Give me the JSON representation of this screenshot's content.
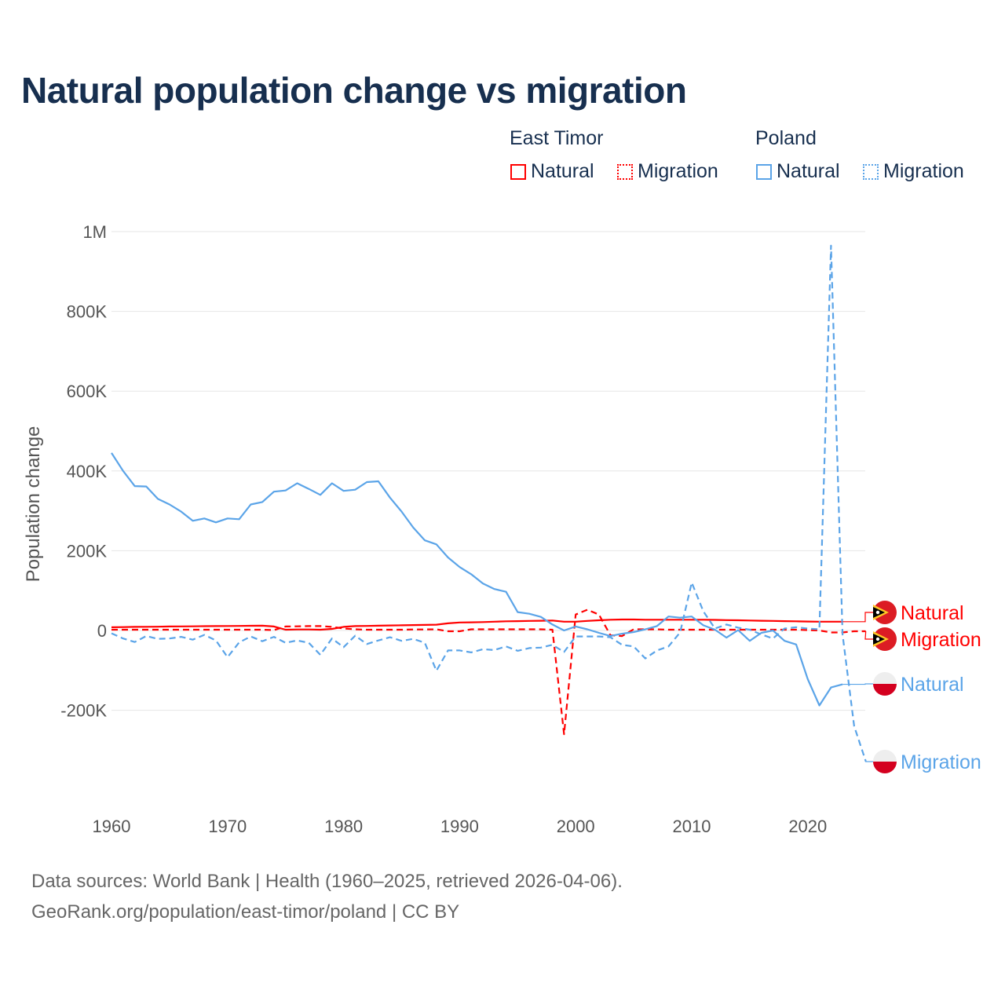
{
  "title": "Natural population change vs migration",
  "legend": {
    "groups": [
      {
        "name": "East Timor",
        "items": [
          "Natural",
          "Migration"
        ]
      },
      {
        "name": "Poland",
        "items": [
          "Natural",
          "Migration"
        ]
      }
    ]
  },
  "footer": {
    "line1": "Data sources: World Bank | Health (1960–2025, retrieved 2026-04-06).",
    "line2": "GeoRank.org/population/east-timor/poland | CC BY"
  },
  "colors": {
    "east_timor": "#ff0000",
    "poland": "#5ba4e8"
  },
  "chart_data": {
    "type": "line",
    "title": "Natural population change vs migration",
    "xlabel": "",
    "ylabel": "Population change",
    "xlim": [
      1960,
      2025
    ],
    "ylim": [
      -400000,
      1000000
    ],
    "x_ticks": [
      1960,
      1970,
      1980,
      1990,
      2000,
      2010,
      2020
    ],
    "x_tick_labels": [
      "1960",
      "1970",
      "1980",
      "1990",
      "2000",
      "2010",
      "2020"
    ],
    "y_ticks": [
      -200000,
      0,
      200000,
      400000,
      600000,
      800000,
      1000000
    ],
    "y_tick_labels": [
      "-200K",
      "0",
      "200K",
      "400K",
      "600K",
      "800K",
      "1M"
    ],
    "grid": true,
    "legend_position": "top-right",
    "start_year": 1960,
    "series": [
      {
        "name": "Natural",
        "country": "East Timor",
        "color": "#ff0000",
        "dash": false,
        "end_label": "Natural",
        "values": [
          8000,
          8500,
          9000,
          9200,
          9500,
          10000,
          10200,
          10500,
          10800,
          11000,
          11200,
          11500,
          11800,
          12000,
          10000,
          2000,
          2500,
          2500,
          2000,
          4000,
          9000,
          11000,
          11500,
          12000,
          12500,
          13000,
          13500,
          14000,
          14500,
          18000,
          20000,
          20500,
          21000,
          22000,
          23000,
          23500,
          24000,
          24500,
          25000,
          22000,
          22000,
          24000,
          25500,
          27000,
          27500,
          27500,
          27000,
          27000,
          27000,
          27000,
          27000,
          27000,
          26500,
          26000,
          25500,
          25000,
          24500,
          24000,
          23500,
          23000,
          22500,
          22000,
          22000,
          22000,
          null,
          null
        ]
      },
      {
        "name": "Migration",
        "country": "East Timor",
        "color": "#ff0000",
        "dash": true,
        "end_label": "Migration",
        "values": [
          2000,
          2000,
          2000,
          2000,
          2000,
          2000,
          2000,
          2000,
          2000,
          2000,
          2000,
          2000,
          2000,
          2000,
          1000,
          10000,
          10500,
          11000,
          11000,
          9000,
          5000,
          3000,
          2000,
          2000,
          2000,
          2000,
          2500,
          2500,
          3000,
          -2000,
          -2000,
          3000,
          3000,
          3000,
          3000,
          3000,
          3000,
          3000,
          2000,
          -260000,
          40000,
          52000,
          40000,
          -12000,
          -14000,
          3000,
          3000,
          3000,
          2000,
          2000,
          2000,
          2000,
          2000,
          2000,
          2000,
          2000,
          2000,
          2000,
          2000,
          2000,
          1000,
          0,
          -5000,
          -5000,
          -2000,
          -2000
        ]
      },
      {
        "name": "Natural",
        "country": "Poland",
        "color": "#5ba4e8",
        "dash": false,
        "end_label": "Natural",
        "values": [
          445000,
          400000,
          362000,
          361000,
          330000,
          316000,
          298000,
          275000,
          281000,
          271000,
          281000,
          279000,
          316000,
          322000,
          348000,
          351000,
          369000,
          355000,
          340000,
          369000,
          350000,
          353000,
          372000,
          374000,
          333000,
          298000,
          258000,
          226000,
          216000,
          183000,
          159000,
          141000,
          118000,
          104000,
          97000,
          46000,
          42000,
          34000,
          15000,
          0,
          10000,
          3000,
          -6000,
          -14000,
          -8000,
          -4000,
          3000,
          11000,
          35000,
          32000,
          35000,
          13000,
          2000,
          -18000,
          1000,
          -26000,
          -6000,
          0,
          -26000,
          -35000,
          -122000,
          -188000,
          -143000,
          -135000,
          null,
          null
        ]
      },
      {
        "name": "Migration",
        "country": "Poland",
        "color": "#5ba4e8",
        "dash": true,
        "end_label": "Migration",
        "values": [
          -7000,
          -20000,
          -29000,
          -14000,
          -21000,
          -20000,
          -16000,
          -23000,
          -11000,
          -25000,
          -67000,
          -30000,
          -15000,
          -27000,
          -16000,
          -31000,
          -25000,
          -31000,
          -61000,
          -20000,
          -42000,
          -13000,
          -34000,
          -25000,
          -17000,
          -26000,
          -21000,
          -31000,
          -101000,
          -50000,
          -50000,
          -55000,
          -47000,
          -49000,
          -40000,
          -51000,
          -44000,
          -43000,
          -36000,
          -54000,
          -15000,
          -15000,
          -15000,
          -17000,
          -36000,
          -40000,
          -70000,
          -50000,
          -40000,
          -5000,
          120000,
          48000,
          5000,
          15000,
          7000,
          2000,
          -10000,
          -20000,
          5000,
          8000,
          5000,
          3000,
          965000,
          -10000,
          -240000,
          -328000
        ]
      }
    ]
  }
}
